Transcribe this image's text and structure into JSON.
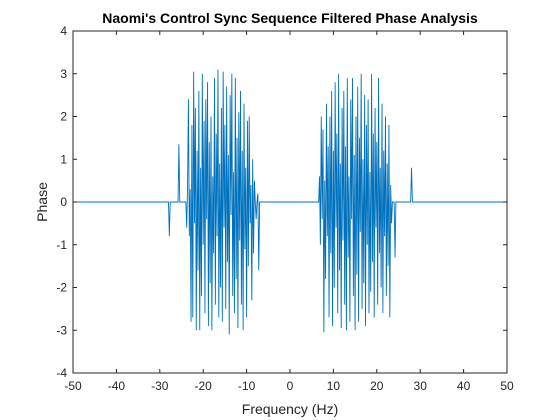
{
  "chart_data": {
    "type": "line",
    "title": "Naomi's Control Sync Sequence Filtered Phase Analysis",
    "xlabel": "Frequency (Hz)",
    "ylabel": "Phase",
    "xlim": [
      -50,
      50
    ],
    "ylim": [
      -4,
      4
    ],
    "xticks": [
      -50,
      -40,
      -30,
      -20,
      -10,
      0,
      10,
      20,
      30,
      40,
      50
    ],
    "yticks": [
      -4,
      -3,
      -2,
      -1,
      0,
      1,
      2,
      3,
      4
    ],
    "grid": false,
    "line_color": "#0072bd",
    "series": [
      {
        "points": [
          [
            -50,
            0
          ],
          [
            -28,
            0
          ],
          [
            -27.8,
            -0.8
          ],
          [
            -27.6,
            0
          ],
          [
            -25.8,
            0
          ],
          [
            -25.6,
            1.35
          ],
          [
            -25.4,
            0
          ],
          [
            -24,
            0
          ],
          [
            -23.8,
            -0.6
          ],
          [
            -23.6,
            0.4
          ],
          [
            -23.4,
            2.4
          ],
          [
            -23.2,
            -0.8
          ],
          [
            -23.0,
            0.3
          ],
          [
            -22.8,
            -2.8
          ],
          [
            -22.6,
            1.8
          ],
          [
            -22.4,
            -2.7
          ],
          [
            -22.2,
            3.05
          ],
          [
            -22.0,
            -0.5
          ],
          [
            -21.8,
            2.2
          ],
          [
            -21.6,
            -3.0
          ],
          [
            -21.4,
            1.2
          ],
          [
            -21.2,
            -1.6
          ],
          [
            -21.0,
            2.6
          ],
          [
            -20.8,
            -3.0
          ],
          [
            -20.6,
            0.8
          ],
          [
            -20.4,
            -2.2
          ],
          [
            -20.2,
            3.0
          ],
          [
            -20.0,
            -1.0
          ],
          [
            -19.8,
            1.9
          ],
          [
            -19.6,
            -2.6
          ],
          [
            -19.4,
            2.4
          ],
          [
            -19.2,
            -0.4
          ],
          [
            -19.0,
            2.8
          ],
          [
            -18.8,
            -2.9
          ],
          [
            -18.6,
            1.4
          ],
          [
            -18.4,
            -1.9
          ],
          [
            -18.2,
            2.0
          ],
          [
            -18.0,
            -3.0
          ],
          [
            -17.8,
            0.6
          ],
          [
            -17.6,
            -1.2
          ],
          [
            -17.4,
            2.9
          ],
          [
            -17.2,
            -2.4
          ],
          [
            -17.0,
            1.6
          ],
          [
            -16.8,
            -0.8
          ],
          [
            -16.6,
            3.1
          ],
          [
            -16.4,
            -2.7
          ],
          [
            -16.2,
            0.9
          ],
          [
            -16.0,
            -2.0
          ],
          [
            -15.8,
            2.2
          ],
          [
            -15.6,
            -2.8
          ],
          [
            -15.4,
            3.05
          ],
          [
            -15.2,
            -0.6
          ],
          [
            -15.0,
            1.8
          ],
          [
            -14.8,
            -2.5
          ],
          [
            -14.6,
            2.7
          ],
          [
            -14.4,
            -1.4
          ],
          [
            -14.2,
            1.1
          ],
          [
            -14.0,
            -3.1
          ],
          [
            -13.8,
            2.5
          ],
          [
            -13.6,
            -0.3
          ],
          [
            -13.4,
            3.0
          ],
          [
            -13.2,
            -2.2
          ],
          [
            -13.0,
            0.7
          ],
          [
            -12.8,
            -2.6
          ],
          [
            -12.6,
            2.9
          ],
          [
            -12.4,
            -1.8
          ],
          [
            -12.2,
            1.5
          ],
          [
            -12.0,
            -2.95
          ],
          [
            -11.8,
            2.1
          ],
          [
            -11.6,
            -0.9
          ],
          [
            -11.4,
            2.6
          ],
          [
            -11.2,
            -2.4
          ],
          [
            -11.0,
            1.2
          ],
          [
            -10.8,
            -3.0
          ],
          [
            -10.6,
            2.3
          ],
          [
            -10.4,
            -1.1
          ],
          [
            -10.2,
            0.8
          ],
          [
            -10.0,
            -2.7
          ],
          [
            -9.8,
            1.9
          ],
          [
            -9.6,
            -1.5
          ],
          [
            -9.4,
            2.0
          ],
          [
            -9.2,
            -0.5
          ],
          [
            -9.0,
            0.4
          ],
          [
            -8.8,
            -2.3
          ],
          [
            -8.6,
            1.0
          ],
          [
            -8.4,
            -1.2
          ],
          [
            -8.2,
            0.5
          ],
          [
            -8.0,
            0
          ],
          [
            -7.8,
            -0.4
          ],
          [
            -7.6,
            0
          ],
          [
            -7.4,
            0.2
          ],
          [
            -7.2,
            -1.6
          ],
          [
            -7.0,
            0
          ],
          [
            6.6,
            0
          ],
          [
            6.8,
            0.6
          ],
          [
            7.0,
            -1.0
          ],
          [
            7.2,
            2.0
          ],
          [
            7.4,
            -0.4
          ],
          [
            7.6,
            1.7
          ],
          [
            7.8,
            -3.05
          ],
          [
            8.0,
            0.5
          ],
          [
            8.2,
            -1.8
          ],
          [
            8.4,
            2.3
          ],
          [
            8.6,
            -0.8
          ],
          [
            8.8,
            1.3
          ],
          [
            9.0,
            -2.7
          ],
          [
            9.2,
            2.0
          ],
          [
            9.4,
            -1.2
          ],
          [
            9.6,
            2.6
          ],
          [
            9.8,
            -2.9
          ],
          [
            10.0,
            1.2
          ],
          [
            10.2,
            -2.0
          ],
          [
            10.4,
            2.8
          ],
          [
            10.6,
            -0.6
          ],
          [
            10.8,
            1.6
          ],
          [
            11.0,
            -2.6
          ],
          [
            11.2,
            3.0
          ],
          [
            11.4,
            -1.6
          ],
          [
            11.6,
            0.9
          ],
          [
            11.8,
            -2.95
          ],
          [
            12.0,
            2.2
          ],
          [
            12.2,
            -0.9
          ],
          [
            12.4,
            2.6
          ],
          [
            12.6,
            -2.4
          ],
          [
            12.8,
            1.3
          ],
          [
            13.0,
            -3.0
          ],
          [
            13.2,
            2.9
          ],
          [
            13.4,
            -1.3
          ],
          [
            13.6,
            0.6
          ],
          [
            13.8,
            -2.8
          ],
          [
            14.0,
            2.4
          ],
          [
            14.2,
            -0.4
          ],
          [
            14.4,
            2.9
          ],
          [
            14.6,
            -2.2
          ],
          [
            14.8,
            1.1
          ],
          [
            15.0,
            -3.0
          ],
          [
            15.2,
            2.0
          ],
          [
            15.4,
            -1.7
          ],
          [
            15.6,
            2.7
          ],
          [
            15.8,
            -2.8
          ],
          [
            16.0,
            1.5
          ],
          [
            16.2,
            -0.7
          ],
          [
            16.4,
            3.0
          ],
          [
            16.6,
            -2.5
          ],
          [
            16.8,
            1.0
          ],
          [
            17.0,
            -1.9
          ],
          [
            17.2,
            2.5
          ],
          [
            17.4,
            -2.9
          ],
          [
            17.6,
            1.8
          ],
          [
            17.8,
            -1.0
          ],
          [
            18.0,
            2.4
          ],
          [
            18.2,
            -2.6
          ],
          [
            18.4,
            0.7
          ],
          [
            18.6,
            -2.1
          ],
          [
            18.8,
            3.0
          ],
          [
            19.0,
            -1.4
          ],
          [
            19.2,
            1.6
          ],
          [
            19.4,
            -2.7
          ],
          [
            19.6,
            2.2
          ],
          [
            19.8,
            -0.6
          ],
          [
            20.0,
            1.4
          ],
          [
            20.2,
            -2.4
          ],
          [
            20.4,
            2.9
          ],
          [
            20.6,
            -1.2
          ],
          [
            20.8,
            0.8
          ],
          [
            21.0,
            -2.0
          ],
          [
            21.2,
            2.3
          ],
          [
            21.4,
            -2.6
          ],
          [
            21.6,
            1.2
          ],
          [
            21.8,
            -0.8
          ],
          [
            22.0,
            2.0
          ],
          [
            22.2,
            -2.2
          ],
          [
            22.4,
            0.9
          ],
          [
            22.6,
            -1.5
          ],
          [
            22.8,
            1.8
          ],
          [
            23.0,
            -2.7
          ],
          [
            23.2,
            0.4
          ],
          [
            23.4,
            -0.5
          ],
          [
            23.6,
            0
          ],
          [
            24.0,
            0
          ],
          [
            24.2,
            -1.3
          ],
          [
            24.4,
            0
          ],
          [
            27.8,
            0
          ],
          [
            28.0,
            0.8
          ],
          [
            28.2,
            0
          ],
          [
            50,
            0
          ]
        ]
      }
    ]
  }
}
